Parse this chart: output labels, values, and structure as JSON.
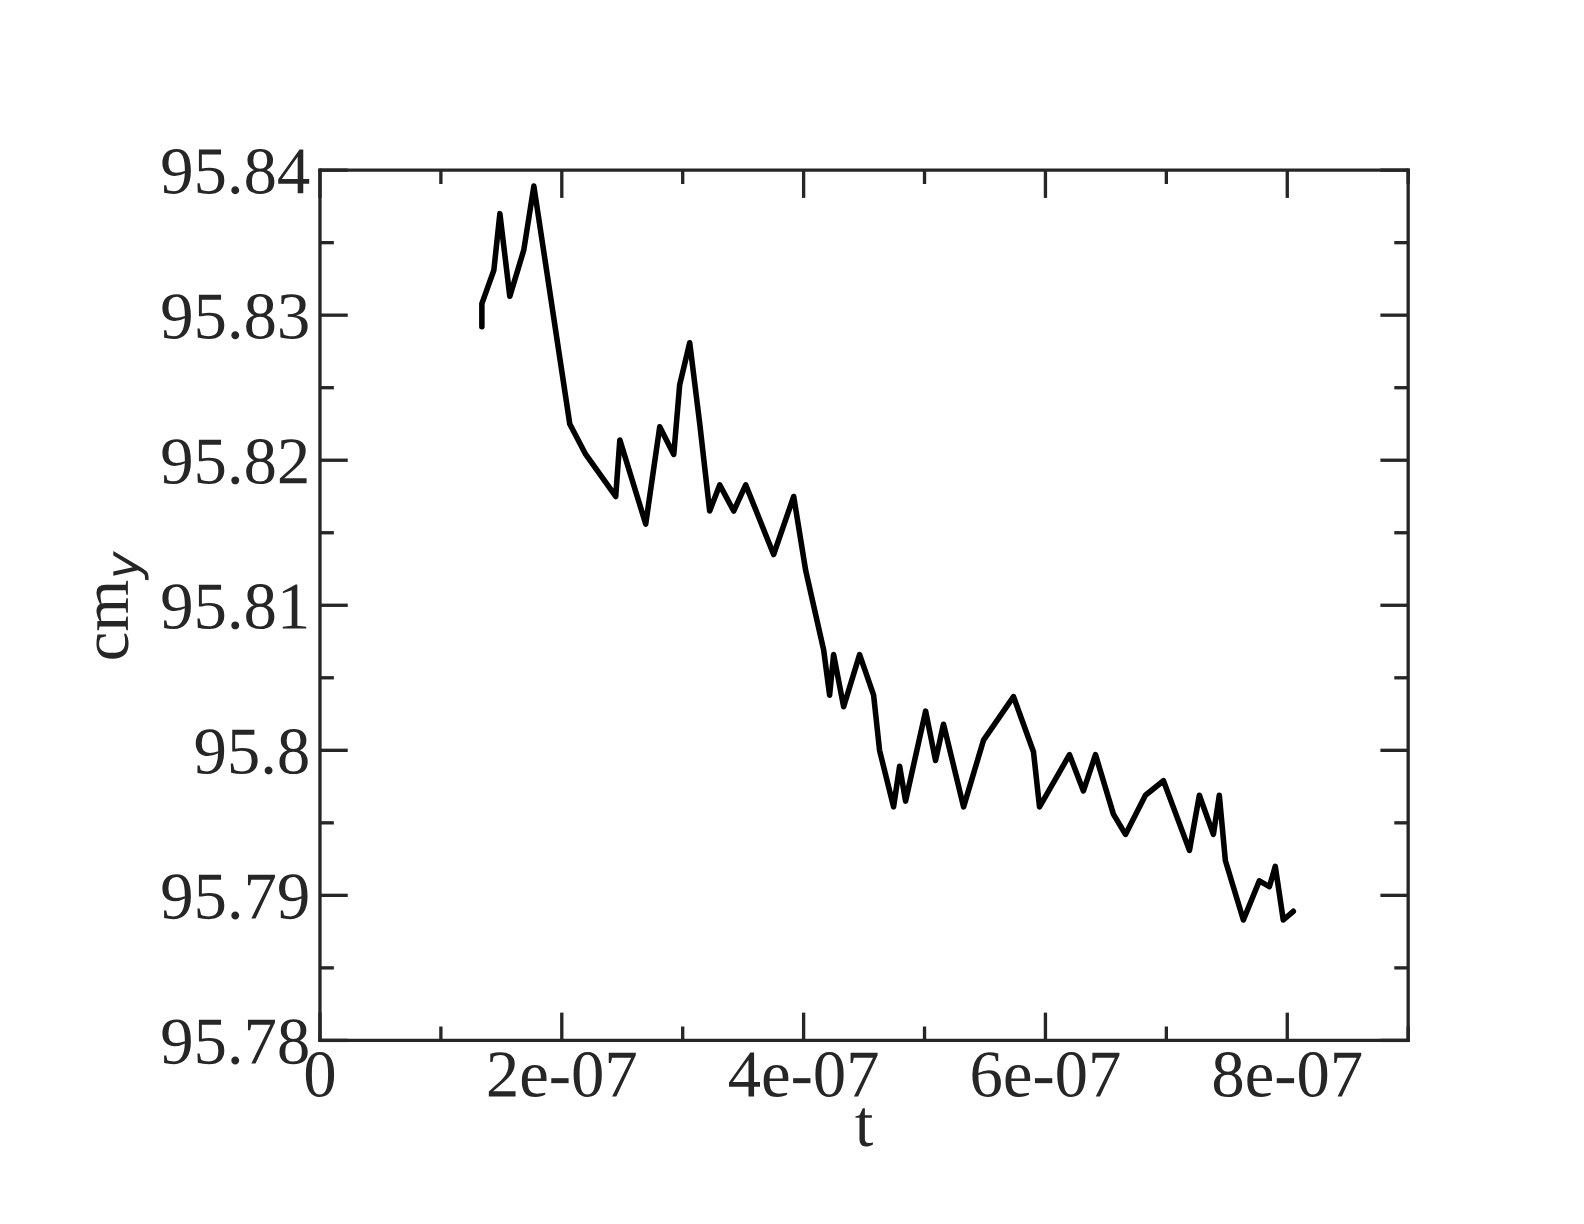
{
  "chart_data": {
    "type": "line",
    "xlabel": "t",
    "ylabel": "cm$_{y}$",
    "xlim": [
      0,
      9e-07
    ],
    "xticks": [
      0,
      2e-07,
      4e-07,
      6e-07,
      8e-07
    ],
    "ylim": [
      95.78,
      95.84
    ],
    "yticks": [
      95.78,
      95.79,
      95.8,
      95.81,
      95.82,
      95.83,
      95.84
    ],
    "grid": false,
    "legend": false,
    "marker": "none",
    "line_style": "solid",
    "series": [
      {
        "color": "#000000",
        "x": [
          1.339e-07,
          1.339e-07,
          1.438e-07,
          1.488e-07,
          1.57e-07,
          1.686e-07,
          1.769e-07,
          2.066e-07,
          2.198e-07,
          2.446e-07,
          2.48e-07,
          2.694e-07,
          2.81e-07,
          2.926e-07,
          2.975e-07,
          3.058e-07,
          3.141e-07,
          3.223e-07,
          3.306e-07,
          3.422e-07,
          3.521e-07,
          3.637e-07,
          3.752e-07,
          3.918e-07,
          4.017e-07,
          4.166e-07,
          4.215e-07,
          4.248e-07,
          4.331e-07,
          4.463e-07,
          4.579e-07,
          4.628e-07,
          4.744e-07,
          4.794e-07,
          4.843e-07,
          5.009e-07,
          5.091e-07,
          5.157e-07,
          5.323e-07,
          5.488e-07,
          5.736e-07,
          5.901e-07,
          5.951e-07,
          6.199e-07,
          6.314e-07,
          6.414e-07,
          6.562e-07,
          6.662e-07,
          6.827e-07,
          6.976e-07,
          7.191e-07,
          7.273e-07,
          7.389e-07,
          7.438e-07,
          7.488e-07,
          7.637e-07,
          7.769e-07,
          7.852e-07,
          7.901e-07,
          7.967e-07,
          8.05e-07
        ],
        "values": [
          95.8292,
          95.8308,
          95.8331,
          95.837,
          95.8313,
          95.8345,
          95.8389,
          95.8225,
          95.8204,
          95.8175,
          95.8214,
          95.8156,
          95.8223,
          95.8204,
          95.8252,
          95.8281,
          95.8225,
          95.8165,
          95.8183,
          95.8165,
          95.8183,
          95.8159,
          95.8135,
          95.8175,
          95.8124,
          95.8069,
          95.8038,
          95.8066,
          95.803,
          95.8066,
          95.8038,
          95.8,
          95.7961,
          95.7989,
          95.7965,
          95.8027,
          95.7993,
          95.8018,
          95.7961,
          95.8007,
          95.8037,
          95.7999,
          95.7961,
          95.7997,
          95.7972,
          95.7997,
          95.7956,
          95.7942,
          95.7969,
          95.7979,
          95.7931,
          95.7969,
          95.7942,
          95.7969,
          95.7924,
          95.7883,
          95.791,
          95.7906,
          95.792,
          95.7883,
          95.7889
        ]
      }
    ]
  }
}
